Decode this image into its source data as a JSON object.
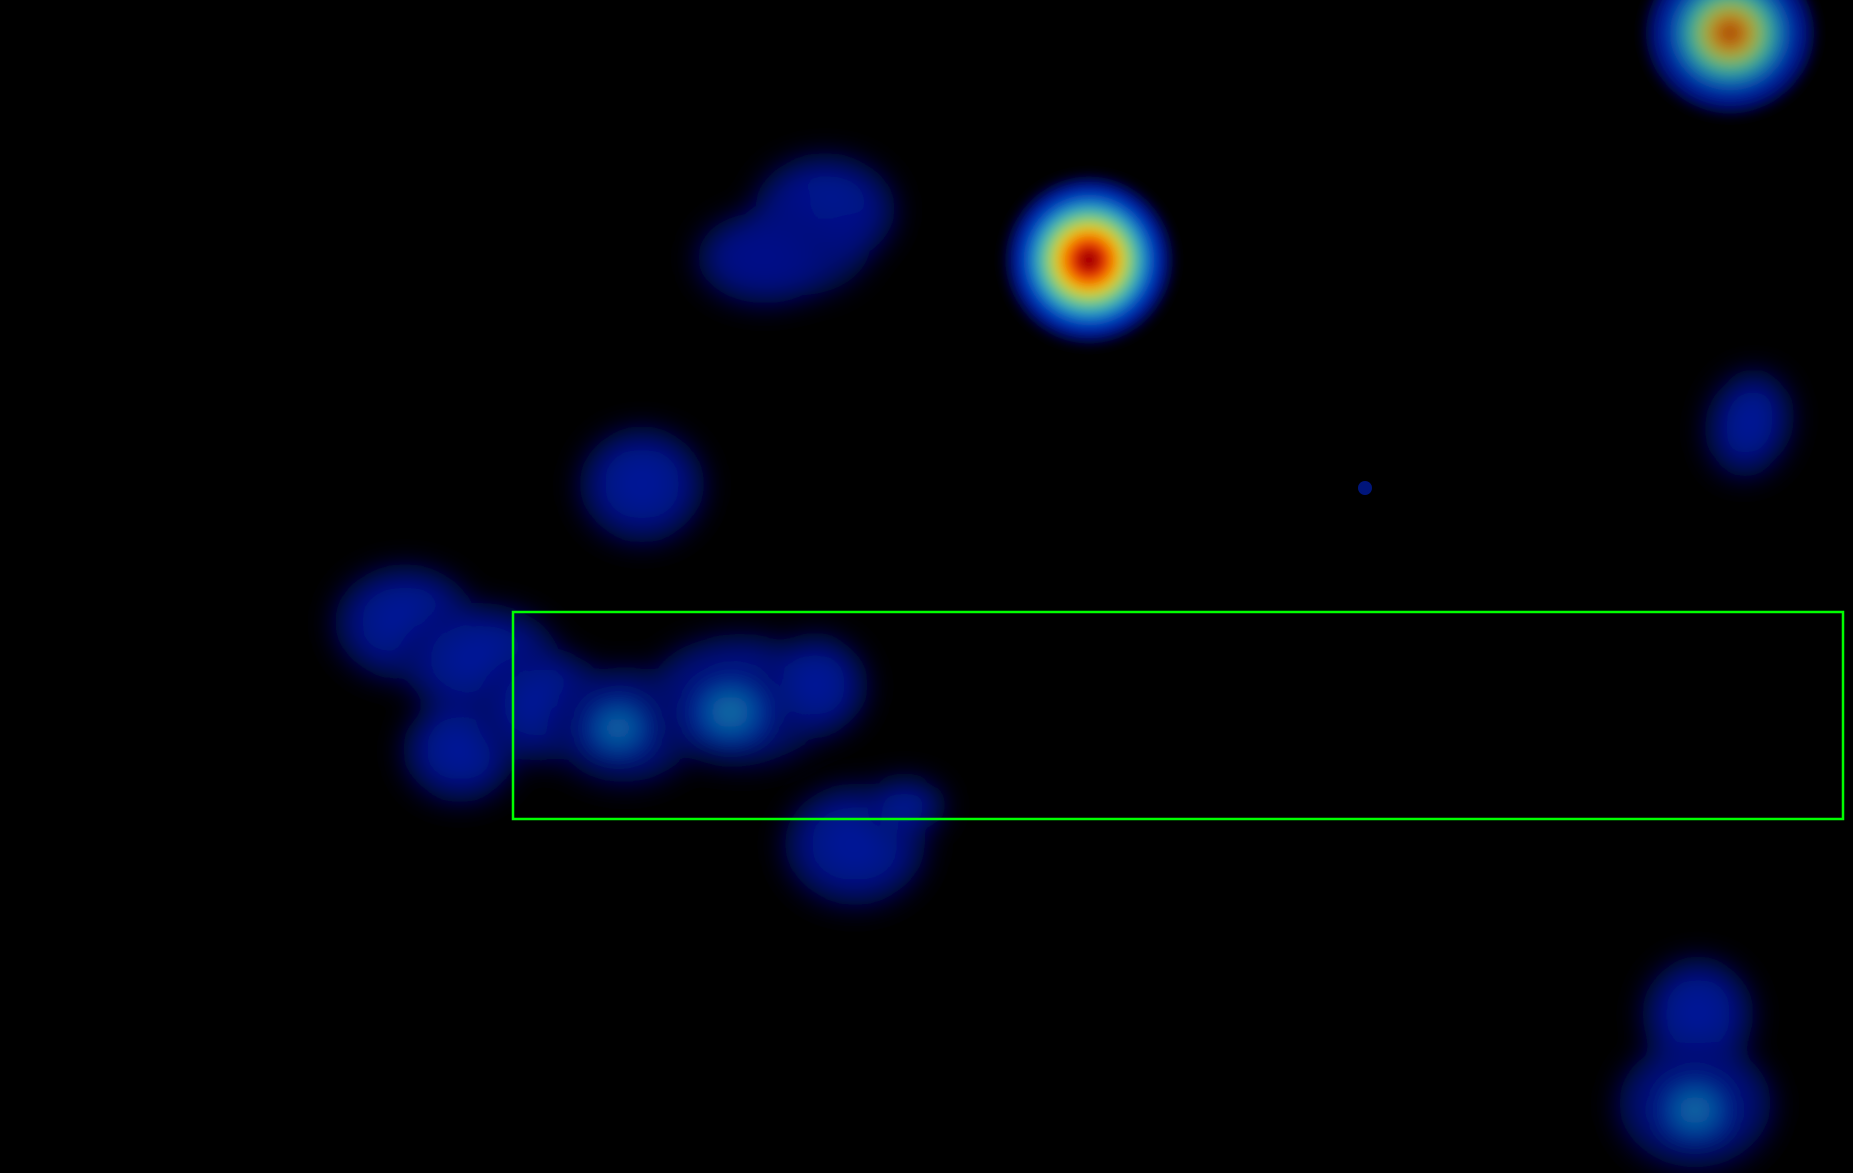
{
  "view": {
    "background": "#000000",
    "colormap": "jet",
    "colormap_stops": [
      "#00007f",
      "#0000ff",
      "#00ffff",
      "#7fff7f",
      "#ffff00",
      "#ff0000",
      "#7f0000"
    ]
  },
  "heat_blobs": [
    {
      "name": "blob-top-right-corner",
      "intensity": 0.8
    },
    {
      "name": "blob-upper-center-peak",
      "intensity": 1.0
    },
    {
      "name": "blob-upper-left-cloud",
      "intensity": 0.25
    },
    {
      "name": "blob-mid-left-small",
      "intensity": 0.2
    },
    {
      "name": "blob-right-edge-small",
      "intensity": 0.15
    },
    {
      "name": "blob-tiny-dot",
      "intensity": 0.15
    },
    {
      "name": "blob-left-cluster",
      "intensity": 0.45
    },
    {
      "name": "blob-below-box",
      "intensity": 0.2
    },
    {
      "name": "blob-bottom-right",
      "intensity": 0.45
    }
  ],
  "selection_box": {
    "stroke_color": "#00ff00"
  }
}
